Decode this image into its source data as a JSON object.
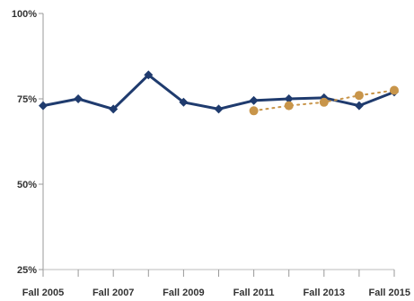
{
  "chart_data": {
    "type": "line",
    "title": "",
    "xlabel": "",
    "ylabel": "",
    "ylim": [
      25,
      100
    ],
    "y_ticks": [
      "25%",
      "50%",
      "75%",
      "100%"
    ],
    "x": [
      "Fall 2005",
      "Fall 2006",
      "Fall 2007",
      "Fall 2008",
      "Fall 2009",
      "Fall 2010",
      "Fall 2011",
      "Fall 2012",
      "Fall 2013",
      "Fall 2014",
      "Fall 2015"
    ],
    "x_tick_labels": [
      "Fall 2005",
      "Fall 2007",
      "Fall 2009",
      "Fall 2011",
      "Fall 2013",
      "Fall 2015"
    ],
    "grid": false,
    "series": [
      {
        "color": "#1f3b6e",
        "style": "solid",
        "values": [
          73,
          75,
          72,
          82,
          74,
          72,
          74.5,
          75,
          75.3,
          73,
          77
        ]
      },
      {
        "color": "#c8954a",
        "style": "dotted",
        "values": [
          null,
          null,
          null,
          null,
          null,
          null,
          71.5,
          73,
          74,
          76,
          77.5
        ]
      }
    ]
  }
}
